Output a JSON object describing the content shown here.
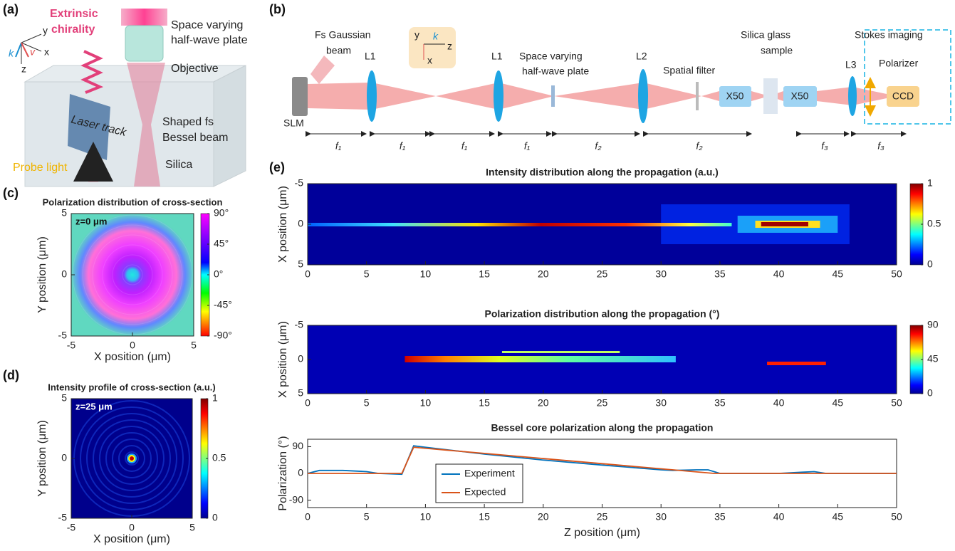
{
  "figure": {
    "panel_labels": [
      "(a)",
      "(b)",
      "(c)",
      "(d)",
      "(e)"
    ],
    "a": {
      "chirality": [
        "Extrinsic",
        "chirality"
      ],
      "plate": [
        "Space varying",
        "half-wave plate"
      ],
      "objective": "Objective",
      "track": "Laser track",
      "bessel": [
        "Shaped fs",
        "Bessel beam"
      ],
      "silica": "Silica",
      "probe": "Probe light",
      "axes": [
        "y",
        "x",
        "z",
        "k",
        "v"
      ]
    },
    "b": {
      "gaussian": [
        "Fs Gaussian",
        "beam"
      ],
      "slm": "SLM",
      "lenses": [
        "L1",
        "L1",
        "L2",
        "L3"
      ],
      "plate": [
        "Space varying",
        "half-wave plate"
      ],
      "filter": "Spatial filter",
      "sample": [
        "Silica glass",
        "sample"
      ],
      "stokes": "Stokes imaging",
      "polarizer": "Polarizer",
      "ccd": "CCD",
      "objectives": [
        "X50",
        "X50"
      ],
      "focal": [
        "f₁",
        "f₁",
        "f₁",
        "f₁",
        "f₂",
        "f₂",
        "f₃",
        "f₃"
      ],
      "axes": [
        "y",
        "k",
        "z",
        "x"
      ]
    }
  },
  "chart_data": [
    {
      "type": "heatmap",
      "title": "Polarization distribution of cross-section",
      "annotation": "z=0 μm",
      "xlabel": "X position (μm)",
      "ylabel": "Y position (μm)",
      "xlim": [
        -5,
        5
      ],
      "ylim": [
        -5,
        5
      ],
      "xticks": [
        -5,
        0,
        5
      ],
      "yticks": [
        -5,
        0,
        5
      ],
      "colormap": "hsv",
      "clim": [
        -90,
        90
      ],
      "cticks": [
        {
          "value": 90,
          "label": "90°"
        },
        {
          "value": 45,
          "label": "45°"
        },
        {
          "value": 0,
          "label": "0°"
        },
        {
          "value": -45,
          "label": "-45°"
        },
        {
          "value": -90,
          "label": "-90°"
        }
      ]
    },
    {
      "type": "heatmap",
      "title": "Intensity profile of cross-section (a.u.)",
      "annotation": "z=25 μm",
      "xlabel": "X position (μm)",
      "ylabel": "Y position (μm)",
      "xlim": [
        -5,
        5
      ],
      "ylim": [
        -5,
        5
      ],
      "xticks": [
        -5,
        0,
        5
      ],
      "yticks": [
        -5,
        0,
        5
      ],
      "colormap": "jet",
      "clim": [
        0,
        1
      ],
      "cticks": [
        0,
        0.5,
        1
      ]
    },
    {
      "type": "heatmap",
      "title": "Intensity distribution along the propagation (a.u.)",
      "ylabel": "X position (μm)",
      "xlim": [
        0,
        50
      ],
      "ylim": [
        -5,
        5
      ],
      "y_reversed": true,
      "xticks": [
        0,
        5,
        10,
        15,
        20,
        25,
        30,
        35,
        40,
        45,
        50
      ],
      "yticks": [
        -5,
        0,
        5
      ],
      "colormap": "jet",
      "clim": [
        0,
        1
      ],
      "cticks": [
        0,
        0.5,
        1
      ]
    },
    {
      "type": "heatmap",
      "title": "Polarization distribution along the propagation (°)",
      "ylabel": "X position (μm)",
      "xlim": [
        0,
        50
      ],
      "ylim": [
        -5,
        5
      ],
      "y_reversed": true,
      "xticks": [
        0,
        5,
        10,
        15,
        20,
        25,
        30,
        35,
        40,
        45,
        50
      ],
      "yticks": [
        -5,
        0,
        5
      ],
      "colormap": "jet",
      "clim": [
        0,
        90
      ],
      "cticks": [
        0,
        45,
        90
      ]
    },
    {
      "type": "line",
      "title": "Bessel core polarization along the propagation",
      "xlabel": "Z position (μm)",
      "ylabel": "Polarization (°)",
      "xlim": [
        0,
        50
      ],
      "ylim": [
        -115,
        115
      ],
      "xticks": [
        0,
        5,
        10,
        15,
        20,
        25,
        30,
        35,
        40,
        45,
        50
      ],
      "yticks": [
        -90,
        0,
        90
      ],
      "series": [
        {
          "name": "Experiment",
          "color": "#0072bd",
          "x": [
            0,
            1,
            3,
            5,
            6,
            8,
            9,
            10,
            15,
            20,
            25,
            30,
            31,
            33,
            34,
            35,
            40,
            42,
            43,
            44,
            50
          ],
          "values": [
            0,
            10,
            10,
            6,
            0,
            -3,
            93,
            88,
            65,
            45,
            28,
            12,
            10,
            12,
            12,
            0,
            0,
            4,
            6,
            0,
            0
          ]
        },
        {
          "name": "Expected",
          "color": "#d95319",
          "x": [
            0,
            8,
            9,
            34.5,
            50
          ],
          "values": [
            0,
            0,
            88,
            0,
            0
          ]
        }
      ]
    }
  ]
}
